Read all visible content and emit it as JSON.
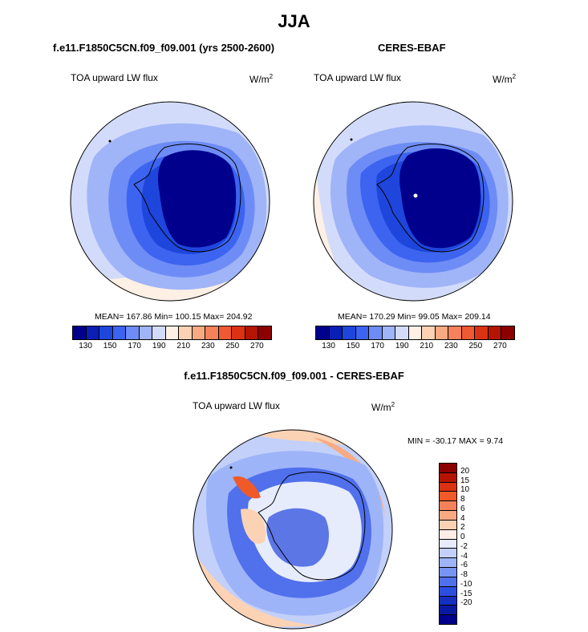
{
  "page": {
    "title": "JJA"
  },
  "panels": {
    "model": {
      "title": "f.e11.F1850C5CN.f09_f09.001 (yrs 2500-2600)",
      "field": "TOA upward LW flux",
      "units_base": "W/m",
      "units_exp": "2",
      "stats": "MEAN= 167.86  Min= 100.15  Max= 204.92"
    },
    "obs": {
      "title": "CERES-EBAF",
      "field": "TOA upward LW flux",
      "units_base": "W/m",
      "units_exp": "2",
      "stats": "MEAN= 170.29  Min=  99.05  Max= 209.14"
    },
    "diff": {
      "title": "f.e11.F1850C5CN.f09_f09.001 - CERES-EBAF",
      "field": "TOA upward LW flux",
      "units_base": "W/m",
      "units_exp": "2",
      "stats": "MIN = -30.17 MAX =   9.74"
    }
  },
  "colors": {
    "abs_scale": [
      "#00008c",
      "#0a1fb5",
      "#1e46dc",
      "#3c64f0",
      "#6e8cf5",
      "#a0b4f8",
      "#d2dcfa",
      "#fff0e6",
      "#fcd2b4",
      "#f8aa82",
      "#f5825a",
      "#f05a32",
      "#dc3214",
      "#b41400",
      "#8c0000"
    ],
    "diff_scale": [
      "#8c0000",
      "#b41400",
      "#dc3214",
      "#f05a28",
      "#f5825a",
      "#f8aa82",
      "#fcd2b4",
      "#ffeee6",
      "#e6ecfc",
      "#c2d0fa",
      "#9eb4f8",
      "#7894f3",
      "#5070ec",
      "#2d4fdf",
      "#1530c0",
      "#0a1aa0",
      "#00008c"
    ],
    "land_outline": "#000000"
  },
  "chart_data": [
    {
      "type": "heatmap",
      "subtype": "polar-stereographic-map",
      "title": "f.e11.F1850C5CN.f09_f09.001 (yrs 2500-2600)",
      "variable": "TOA upward LW flux",
      "units": "W/m2",
      "season": "JJA",
      "mean": 167.86,
      "min": 100.15,
      "max": 204.92,
      "colorbar_ticks": [
        "130",
        "150",
        "170",
        "190",
        "210",
        "230",
        "250",
        "270"
      ]
    },
    {
      "type": "heatmap",
      "subtype": "polar-stereographic-map",
      "title": "CERES-EBAF",
      "variable": "TOA upward LW flux",
      "units": "W/m2",
      "season": "JJA",
      "mean": 170.29,
      "min": 99.05,
      "max": 209.14,
      "colorbar_ticks": [
        "130",
        "150",
        "170",
        "190",
        "210",
        "230",
        "250",
        "270"
      ]
    },
    {
      "type": "heatmap",
      "subtype": "polar-stereographic-map",
      "title": "f.e11.F1850C5CN.f09_f09.001 - CERES-EBAF",
      "variable": "TOA upward LW flux",
      "units": "W/m2",
      "season": "JJA",
      "min": -30.17,
      "max": 9.74,
      "colorbar_ticks": [
        "20",
        "15",
        "10",
        "8",
        "6",
        "4",
        "2",
        "0",
        "-2",
        "-4",
        "-6",
        "-8",
        "-10",
        "-15",
        "-20"
      ]
    }
  ]
}
